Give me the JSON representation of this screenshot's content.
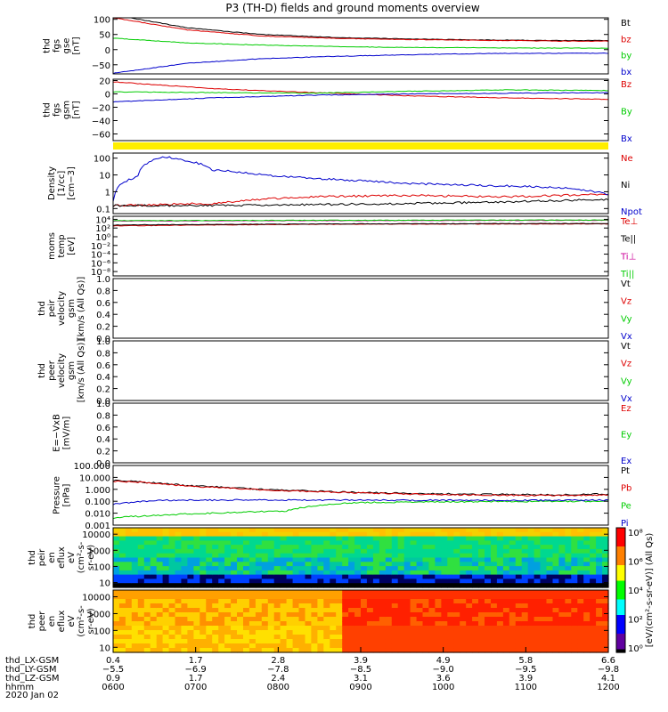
{
  "title": "P3 (TH-D) fields and ground moments overview",
  "date_label": "2020 Jan 02",
  "colors": {
    "black": "#000000",
    "red": "#dd0000",
    "green": "#00cc00",
    "blue": "#0000cc",
    "yellow": "#ffee00",
    "magenta": "#cc0099"
  },
  "chart_data": [
    {
      "type": "line",
      "id": "fgs_gse",
      "ylabel": [
        "thd",
        "fgs",
        "gse",
        "[nT]"
      ],
      "yticks": [
        "100",
        "50",
        "0",
        "−50"
      ],
      "ylim": [
        -80,
        105
      ],
      "legend": [
        {
          "name": "Bt",
          "color": "#000000"
        },
        {
          "name": "bz",
          "color": "#dd0000"
        },
        {
          "name": "by",
          "color": "#00cc00"
        },
        {
          "name": "bx",
          "color": "#0000cc"
        }
      ],
      "series": [
        {
          "name": "Bt",
          "x": [
            0.0,
            0.15,
            0.3,
            0.45,
            0.6,
            0.75,
            0.9,
            1.0
          ],
          "values": [
            115,
            72,
            50,
            40,
            35,
            32,
            30,
            30
          ]
        },
        {
          "name": "bz",
          "x": [
            0.0,
            0.15,
            0.3,
            0.45,
            0.6,
            0.75,
            0.9,
            1.0
          ],
          "values": [
            105,
            65,
            45,
            37,
            33,
            31,
            28,
            28
          ]
        },
        {
          "name": "by",
          "x": [
            0.0,
            0.15,
            0.3,
            0.45,
            0.6,
            0.75,
            0.9,
            1.0
          ],
          "values": [
            38,
            22,
            15,
            10,
            7,
            6,
            5,
            5
          ]
        },
        {
          "name": "bx",
          "x": [
            0.0,
            0.15,
            0.3,
            0.45,
            0.6,
            0.75,
            0.9,
            1.0
          ],
          "values": [
            -78,
            -45,
            -30,
            -22,
            -17,
            -13,
            -12,
            -12
          ]
        }
      ]
    },
    {
      "type": "line",
      "id": "fgs_gsm",
      "ylabel": [
        "thd",
        "fgs",
        "gsm",
        "[nT]"
      ],
      "yticks": [
        "20",
        "0",
        "−20",
        "−40",
        "−60"
      ],
      "ylim": [
        -70,
        22
      ],
      "legend": [
        {
          "name": "Bz",
          "color": "#dd0000"
        },
        {
          "name": "By",
          "color": "#00cc00"
        },
        {
          "name": "Bx",
          "color": "#0000cc"
        }
      ],
      "series": [
        {
          "name": "Bz",
          "x": [
            0.0,
            0.2,
            0.4,
            0.6,
            0.8,
            1.0
          ],
          "values": [
            18,
            8,
            2,
            -3,
            -6,
            -8
          ]
        },
        {
          "name": "By",
          "x": [
            0.0,
            0.2,
            0.4,
            0.6,
            0.8,
            1.0
          ],
          "values": [
            3,
            2,
            1,
            4,
            6,
            5
          ]
        },
        {
          "name": "Bx",
          "x": [
            0.0,
            0.2,
            0.4,
            0.6,
            0.8,
            1.0
          ],
          "values": [
            -12,
            -6,
            -2,
            0,
            1,
            2
          ]
        }
      ]
    },
    {
      "type": "line",
      "id": "density",
      "scale": "log",
      "ylabel": [
        "Density",
        "[1/cc]",
        "[cm−3]"
      ],
      "yticks": [
        "100",
        "10",
        "1",
        "0.1"
      ],
      "ylim": [
        0.05,
        200
      ],
      "legend": [
        {
          "name": "Ne",
          "color": "#dd0000"
        },
        {
          "name": "Ni",
          "color": "#000000"
        },
        {
          "name": "Npot",
          "color": "#0000cc"
        }
      ],
      "series": [
        {
          "name": "Ne",
          "x": [
            0.0,
            0.2,
            0.4,
            0.6,
            0.8,
            1.0
          ],
          "values": [
            0.15,
            0.2,
            0.5,
            0.6,
            0.5,
            0.7
          ]
        },
        {
          "name": "Ni",
          "x": [
            0.0,
            0.2,
            0.4,
            0.6,
            0.8,
            1.0
          ],
          "values": [
            0.15,
            0.15,
            0.17,
            0.2,
            0.25,
            0.35
          ]
        },
        {
          "name": "Npot",
          "x": [
            0.0,
            0.05,
            0.1,
            0.2,
            0.3,
            0.4,
            0.6,
            0.8,
            0.9,
            1.0
          ],
          "values": [
            0.3,
            8,
            120,
            20,
            10,
            6,
            3,
            2.2,
            1.8,
            0.7
          ]
        }
      ]
    },
    {
      "type": "line",
      "id": "moms_temp",
      "scale": "log",
      "ylabel": [
        "moms",
        "temp",
        "[eV]"
      ],
      "yticks": [
        "10⁴",
        "10²",
        "10⁰",
        "10⁻²",
        "10⁻⁴",
        "10⁻⁶",
        "10⁻⁸"
      ],
      "ylim": [
        1e-09,
        50000
      ],
      "legend": [
        {
          "name": "Te⊥",
          "color": "#dd0000"
        },
        {
          "name": "Te||",
          "color": "#000000"
        },
        {
          "name": "Ti⊥",
          "color": "#cc0099"
        },
        {
          "name": "Ti||",
          "color": "#00cc00"
        }
      ],
      "series": [
        {
          "name": "Te⊥",
          "x": [
            0.0,
            0.5,
            1.0
          ],
          "values": [
            300,
            800,
            900
          ]
        },
        {
          "name": "Te||",
          "x": [
            0.0,
            0.5,
            1.0
          ],
          "values": [
            500,
            900,
            1100
          ]
        },
        {
          "name": "Ti⊥",
          "x": [
            0.0,
            0.5,
            1.0
          ],
          "values": [
            4000,
            5000,
            6000
          ]
        },
        {
          "name": "Ti||",
          "x": [
            0.0,
            0.5,
            1.0
          ],
          "values": [
            5000,
            6000,
            7000
          ]
        }
      ]
    },
    {
      "type": "line",
      "id": "peir_velocity",
      "ylabel": [
        "thd",
        "peir",
        "velocity",
        "gsm",
        "[km/s (All Qs)]"
      ],
      "yticks": [
        "1.0",
        "0.8",
        "0.6",
        "0.4",
        "0.2",
        "0.0"
      ],
      "ylim": [
        0,
        1
      ],
      "legend": [
        {
          "name": "Vt",
          "color": "#000000"
        },
        {
          "name": "Vz",
          "color": "#dd0000"
        },
        {
          "name": "Vy",
          "color": "#00cc00"
        },
        {
          "name": "Vx",
          "color": "#0000cc"
        }
      ],
      "series": []
    },
    {
      "type": "line",
      "id": "peer_velocity",
      "ylabel": [
        "thd",
        "peer",
        "velocity",
        "gsm",
        "[km/s (All Qs)]"
      ],
      "yticks": [
        "1.0",
        "0.8",
        "0.6",
        "0.4",
        "0.2",
        "0.0"
      ],
      "ylim": [
        0,
        1
      ],
      "legend": [
        {
          "name": "Vt",
          "color": "#000000"
        },
        {
          "name": "Vz",
          "color": "#dd0000"
        },
        {
          "name": "Vy",
          "color": "#00cc00"
        },
        {
          "name": "Vx",
          "color": "#0000cc"
        }
      ],
      "series": []
    },
    {
      "type": "line",
      "id": "efield",
      "ylabel": [
        "E=−VxB",
        "[mV/m]"
      ],
      "yticks": [
        "1.0",
        "0.8",
        "0.6",
        "0.4",
        "0.2",
        "0.0"
      ],
      "ylim": [
        0,
        1
      ],
      "legend": [
        {
          "name": "Ez",
          "color": "#dd0000"
        },
        {
          "name": "Ey",
          "color": "#00cc00"
        },
        {
          "name": "Ex",
          "color": "#0000cc"
        }
      ],
      "series": []
    },
    {
      "type": "line",
      "id": "pressure",
      "scale": "log",
      "ylabel": [
        "Pressure",
        "[nPa]"
      ],
      "yticks": [
        "100.000",
        "10.000",
        "1.000",
        "0.100",
        "0.010",
        "0.001"
      ],
      "ylim": [
        0.001,
        100
      ],
      "legend": [
        {
          "name": "Pt",
          "color": "#000000"
        },
        {
          "name": "Pb",
          "color": "#dd0000"
        },
        {
          "name": "Pe",
          "color": "#00cc00"
        },
        {
          "name": "Pi",
          "color": "#0000cc"
        }
      ],
      "series": [
        {
          "name": "Pt",
          "x": [
            0.0,
            0.15,
            0.3,
            0.45,
            0.6,
            0.75,
            0.9,
            1.0
          ],
          "values": [
            5.5,
            2.0,
            1.0,
            0.6,
            0.45,
            0.38,
            0.35,
            0.4
          ]
        },
        {
          "name": "Pb",
          "x": [
            0.0,
            0.15,
            0.3,
            0.45,
            0.6,
            0.75,
            0.9,
            1.0
          ],
          "values": [
            5.0,
            1.8,
            0.9,
            0.55,
            0.4,
            0.33,
            0.3,
            0.33
          ]
        },
        {
          "name": "Pe",
          "x": [
            0.0,
            0.1,
            0.2,
            0.35,
            0.5,
            0.7,
            0.9,
            1.0
          ],
          "values": [
            0.004,
            0.007,
            0.01,
            0.015,
            0.08,
            0.09,
            0.1,
            0.1
          ]
        },
        {
          "name": "Pi",
          "x": [
            0.0,
            0.1,
            0.3,
            0.5,
            0.7,
            0.9,
            1.0
          ],
          "values": [
            0.06,
            0.12,
            0.13,
            0.12,
            0.12,
            0.12,
            0.12
          ]
        }
      ]
    },
    {
      "type": "heatmap",
      "id": "peir_en_eflux",
      "scale": "log",
      "ylabel": [
        "thd",
        "peir",
        "en",
        "eflux",
        "eV",
        "(cm²-s-",
        "sr-eV)"
      ],
      "yticks": [
        "10000",
        "1000",
        "100",
        "10"
      ],
      "ylim": [
        5,
        25000
      ]
    },
    {
      "type": "heatmap",
      "id": "peer_en_eflux",
      "scale": "log",
      "ylabel": [
        "thd",
        "peer",
        "en",
        "eflux",
        "eV",
        "(cm²-s-",
        "sr-eV)"
      ],
      "yticks": [
        "10000",
        "1000",
        "100",
        "10"
      ],
      "ylim": [
        5,
        25000
      ]
    }
  ],
  "colorbar": {
    "ticks": [
      "10⁸",
      "10⁶",
      "10⁴",
      "10²",
      "10⁰"
    ],
    "label": "[eV/(cm²-s-sr-eV)] (All Qs)"
  },
  "x_axis": {
    "row_labels": [
      "thd_LX-GSM",
      "thd_LY-GSM",
      "thd_LZ-GSM",
      "hhmm"
    ],
    "columns": [
      [
        "0.4",
        "−5.5",
        "0.9",
        "0600"
      ],
      [
        "1.7",
        "−6.9",
        "1.7",
        "0700"
      ],
      [
        "2.8",
        "−7.8",
        "2.4",
        "0800"
      ],
      [
        "3.9",
        "−8.5",
        "3.1",
        "0900"
      ],
      [
        "4.9",
        "−9.0",
        "3.6",
        "1000"
      ],
      [
        "5.8",
        "−9.5",
        "3.9",
        "1100"
      ],
      [
        "6.6",
        "−9.8",
        "4.1",
        "1200"
      ]
    ]
  }
}
